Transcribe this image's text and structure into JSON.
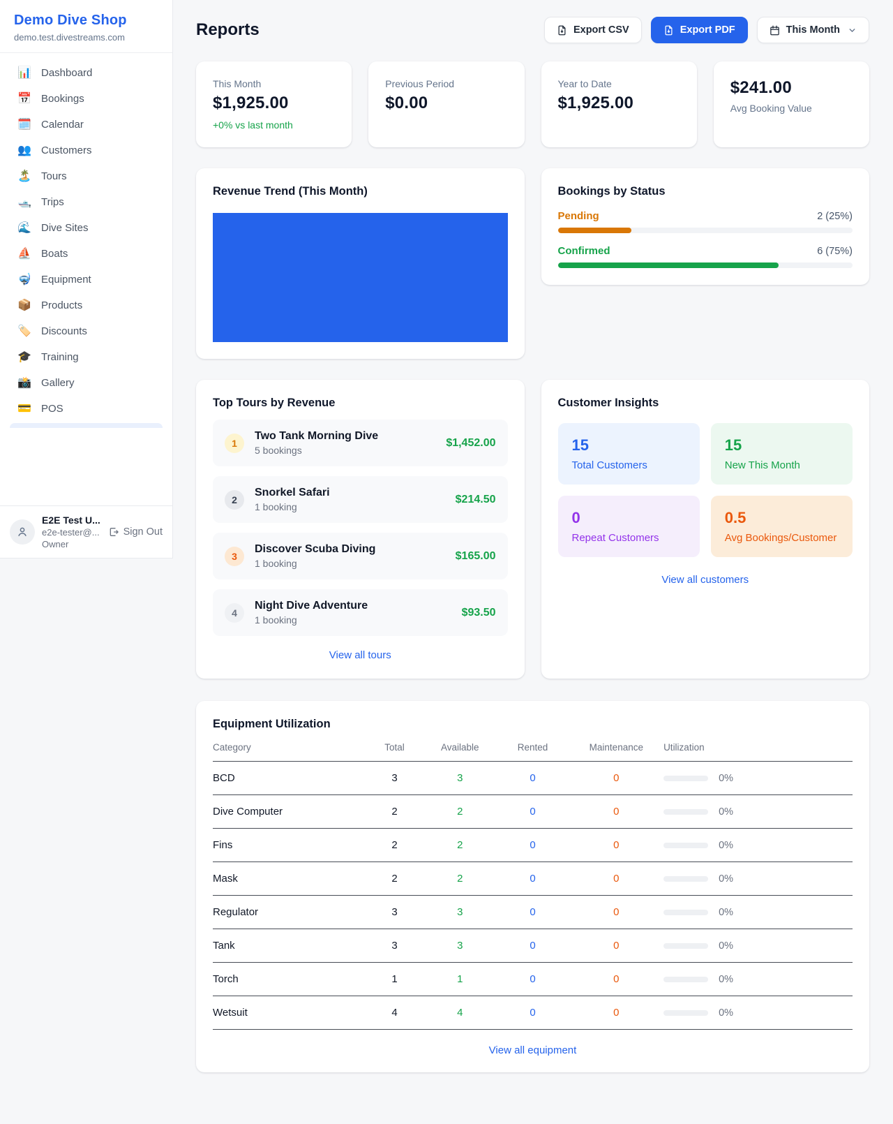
{
  "sidebar": {
    "brand": {
      "name": "Demo Dive Shop",
      "domain": "demo.test.divestreams.com"
    },
    "nav": [
      {
        "icon": "📊",
        "label": "Dashboard"
      },
      {
        "icon": "📅",
        "label": "Bookings"
      },
      {
        "icon": "🗓️",
        "label": "Calendar"
      },
      {
        "icon": "👥",
        "label": "Customers"
      },
      {
        "icon": "🏝️",
        "label": "Tours"
      },
      {
        "icon": "🛥️",
        "label": "Trips"
      },
      {
        "icon": "🌊",
        "label": "Dive Sites"
      },
      {
        "icon": "⛵",
        "label": "Boats"
      },
      {
        "icon": "🤿",
        "label": "Equipment"
      },
      {
        "icon": "📦",
        "label": "Products"
      },
      {
        "icon": "🏷️",
        "label": "Discounts"
      },
      {
        "icon": "🎓",
        "label": "Training"
      },
      {
        "icon": "📸",
        "label": "Gallery"
      },
      {
        "icon": "💳",
        "label": "POS"
      }
    ],
    "user": {
      "name": "E2E Test U...",
      "email": "e2e-tester@...",
      "role": "Owner",
      "signout_label": "Sign Out"
    }
  },
  "header": {
    "title": "Reports",
    "export_csv_label": "Export CSV",
    "export_pdf_label": "Export PDF",
    "period_label": "This Month"
  },
  "stats": [
    {
      "label": "This Month",
      "value": "$1,925.00",
      "delta": "+0% vs last month"
    },
    {
      "label": "Previous Period",
      "value": "$0.00"
    },
    {
      "label": "Year to Date",
      "value": "$1,925.00"
    },
    {
      "value": "$241.00",
      "label": "Avg Booking Value"
    }
  ],
  "revenue_trend": {
    "title": "Revenue Trend (This Month)",
    "fill_pct": 100,
    "bar_color": "#2563eb"
  },
  "bookings_by_status": {
    "title": "Bookings by Status",
    "rows": [
      {
        "label": "Pending",
        "value": "2 (25%)",
        "pct": 25,
        "color": "#d97706"
      },
      {
        "label": "Confirmed",
        "value": "6 (75%)",
        "pct": 75,
        "color": "#16a34a"
      }
    ]
  },
  "top_tours": {
    "title": "Top Tours by Revenue",
    "items": [
      {
        "rank": "1",
        "name": "Two Tank Morning Dive",
        "bookings": "5 bookings",
        "revenue": "$1,452.00"
      },
      {
        "rank": "2",
        "name": "Snorkel Safari",
        "bookings": "1 booking",
        "revenue": "$214.50"
      },
      {
        "rank": "3",
        "name": "Discover Scuba Diving",
        "bookings": "1 booking",
        "revenue": "$165.00"
      },
      {
        "rank": "4",
        "name": "Night Dive Adventure",
        "bookings": "1 booking",
        "revenue": "$93.50"
      }
    ],
    "link": "View all tours"
  },
  "customer_insights": {
    "title": "Customer Insights",
    "tiles": [
      {
        "value": "15",
        "label": "Total Customers",
        "theme": "blue"
      },
      {
        "value": "15",
        "label": "New This Month",
        "theme": "green"
      },
      {
        "value": "0",
        "label": "Repeat Customers",
        "theme": "purple"
      },
      {
        "value": "0.5",
        "label": "Avg Bookings/Customer",
        "theme": "orange"
      }
    ],
    "link": "View all customers"
  },
  "equipment": {
    "title": "Equipment Utilization",
    "columns": [
      "Category",
      "Total",
      "Available",
      "Rented",
      "Maintenance",
      "Utilization"
    ],
    "rows": [
      {
        "category": "BCD",
        "total": "3",
        "available": "3",
        "rented": "0",
        "maintenance": "0",
        "utilization": "0%",
        "pct": 0
      },
      {
        "category": "Dive Computer",
        "total": "2",
        "available": "2",
        "rented": "0",
        "maintenance": "0",
        "utilization": "0%",
        "pct": 0
      },
      {
        "category": "Fins",
        "total": "2",
        "available": "2",
        "rented": "0",
        "maintenance": "0",
        "utilization": "0%",
        "pct": 0
      },
      {
        "category": "Mask",
        "total": "2",
        "available": "2",
        "rented": "0",
        "maintenance": "0",
        "utilization": "0%",
        "pct": 0
      },
      {
        "category": "Regulator",
        "total": "3",
        "available": "3",
        "rented": "0",
        "maintenance": "0",
        "utilization": "0%",
        "pct": 0
      },
      {
        "category": "Tank",
        "total": "3",
        "available": "3",
        "rented": "0",
        "maintenance": "0",
        "utilization": "0%",
        "pct": 0
      },
      {
        "category": "Torch",
        "total": "1",
        "available": "1",
        "rented": "0",
        "maintenance": "0",
        "utilization": "0%",
        "pct": 0
      },
      {
        "category": "Wetsuit",
        "total": "4",
        "available": "4",
        "rented": "0",
        "maintenance": "0",
        "utilization": "0%",
        "pct": 0
      }
    ],
    "link": "View all equipment"
  }
}
